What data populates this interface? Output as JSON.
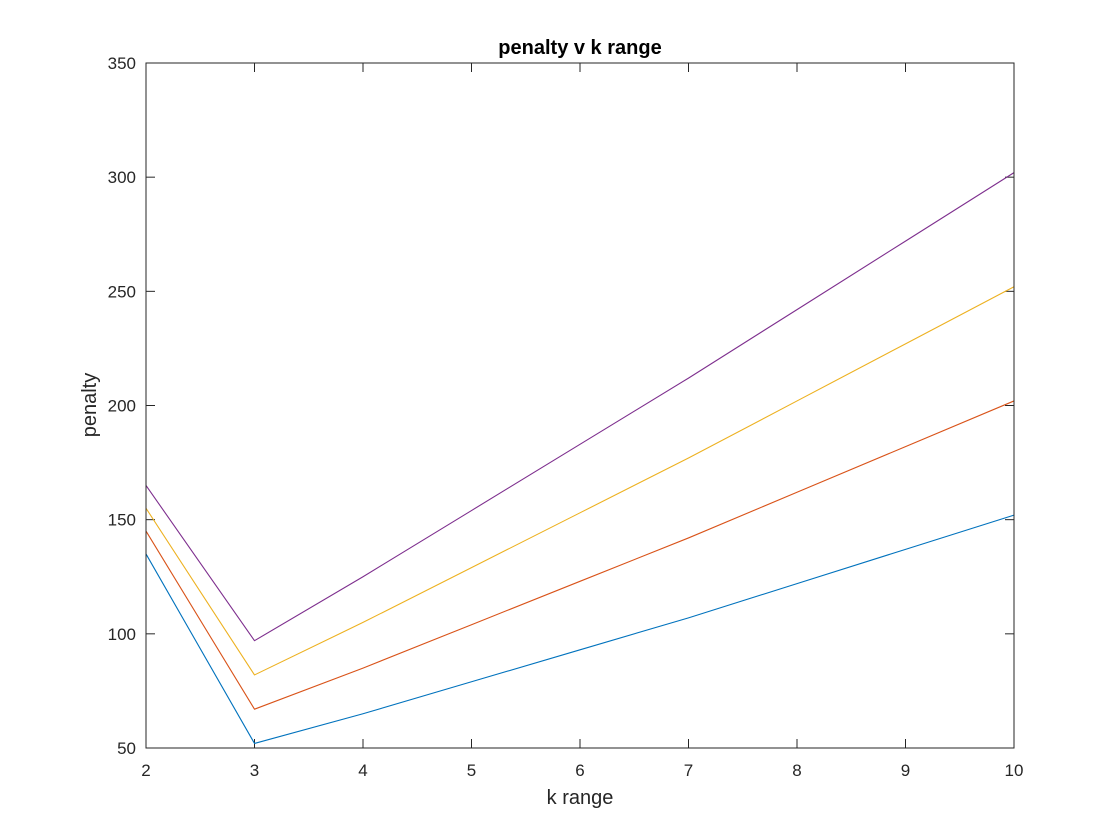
{
  "chart_data": {
    "type": "line",
    "title": "penalty v k range",
    "xlabel": "k range",
    "ylabel": "penalty",
    "xlim": [
      2,
      10
    ],
    "ylim": [
      50,
      350
    ],
    "x_ticks": [
      2,
      3,
      4,
      5,
      6,
      7,
      8,
      9,
      10
    ],
    "y_ticks": [
      50,
      100,
      150,
      200,
      250,
      300,
      350
    ],
    "x_tick_labels": [
      "2",
      "3",
      "4",
      "5",
      "6",
      "7",
      "8",
      "9",
      "10"
    ],
    "y_tick_labels": [
      "50",
      "100",
      "150",
      "200",
      "250",
      "300",
      "350"
    ],
    "grid": false,
    "x": [
      2,
      3,
      4,
      5,
      6,
      7,
      8,
      9,
      10
    ],
    "series": [
      {
        "color": "#0072BD",
        "values": [
          135,
          52,
          65,
          79,
          93,
          107,
          122,
          137,
          152
        ]
      },
      {
        "color": "#D95319",
        "values": [
          145,
          67,
          85,
          104,
          123,
          142,
          162,
          182,
          202
        ]
      },
      {
        "color": "#EDB120",
        "values": [
          155,
          82,
          105,
          129,
          153,
          177,
          202,
          227,
          252
        ]
      },
      {
        "color": "#7E2F8E",
        "values": [
          165,
          97,
          125,
          154,
          183,
          212,
          242,
          272,
          302
        ]
      }
    ]
  }
}
